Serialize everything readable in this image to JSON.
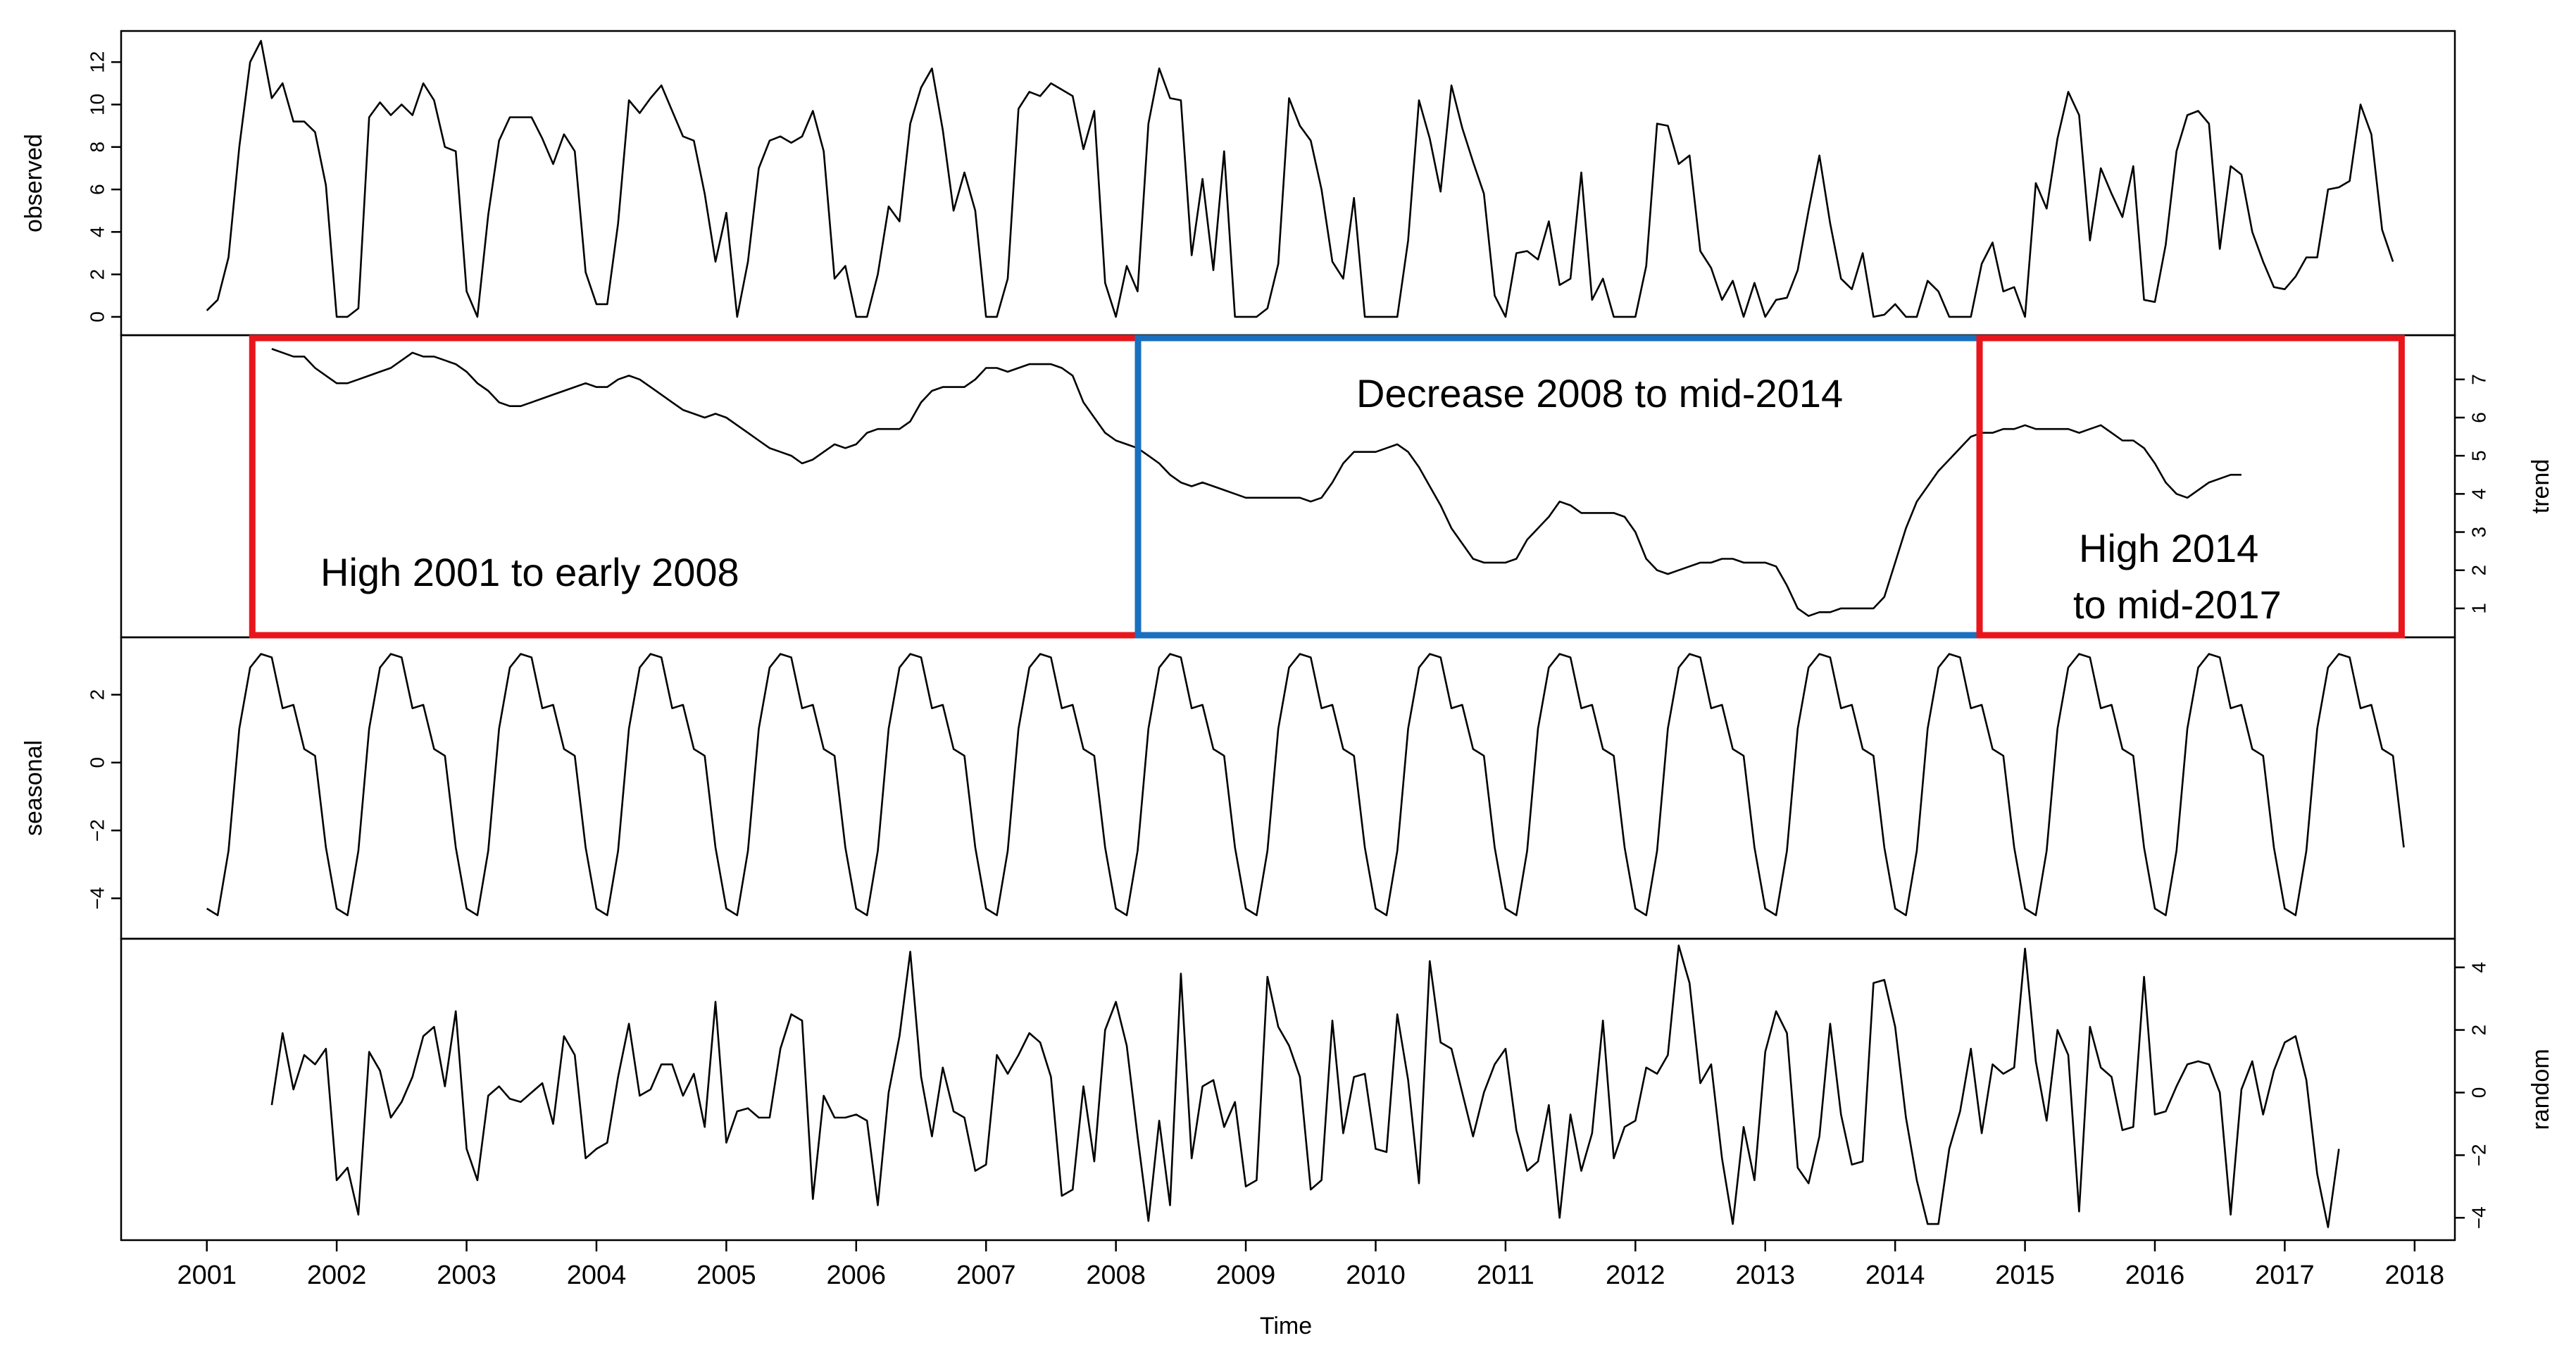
{
  "chart_data": {
    "type": "line",
    "title": "",
    "xlabel": "Time",
    "x_start": 2001,
    "frequency": 12,
    "x_ticks": [
      "2001",
      "2002",
      "2003",
      "2004",
      "2005",
      "2006",
      "2007",
      "2008",
      "2009",
      "2010",
      "2011",
      "2012",
      "2013",
      "2014",
      "2015",
      "2016",
      "2017",
      "2018"
    ],
    "x_range": [
      2001,
      2018
    ],
    "panels": [
      {
        "name": "observed",
        "ylabel": "observed",
        "ylim": [
          -0.4,
          13
        ],
        "yticks": [
          "0",
          "2",
          "4",
          "6",
          "8",
          "10",
          "12"
        ],
        "values": [
          0.3,
          0.8,
          2.8,
          8,
          12,
          13,
          10.3,
          11,
          9.2,
          9.2,
          8.7,
          6.2,
          0,
          0,
          0.4,
          9.4,
          10.1,
          9.5,
          10,
          9.5,
          11,
          10.2,
          8,
          7.8,
          1.2,
          0,
          4.8,
          8.3,
          9.4,
          9.4,
          9.4,
          8.4,
          7.2,
          8.6,
          7.8,
          2.1,
          0.6,
          0.6,
          4.4,
          10.2,
          9.6,
          10.3,
          10.9,
          9.7,
          8.5,
          8.3,
          5.8,
          2.6,
          4.9,
          0,
          2.6,
          7,
          8.3,
          8.5,
          8.2,
          8.5,
          9.7,
          7.8,
          1.8,
          2.4,
          0,
          0,
          2,
          5.2,
          4.5,
          9.1,
          10.8,
          11.7,
          8.8,
          5,
          6.8,
          5,
          0,
          0,
          1.8,
          9.8,
          10.6,
          10.4,
          11,
          10.7,
          10.4,
          7.9,
          9.7,
          1.6,
          0,
          2.4,
          1.2,
          9.1,
          11.7,
          10.3,
          10.2,
          2.9,
          6.5,
          2.2,
          7.8,
          0,
          0,
          0,
          0.4,
          2.5,
          10.3,
          9,
          8.3,
          6,
          2.6,
          1.8,
          5.6,
          0,
          0,
          0,
          0,
          3.6,
          10.2,
          8.4,
          5.9,
          10.9,
          8.9,
          7.3,
          5.8,
          1,
          0,
          3,
          3.1,
          2.7,
          4.5,
          1.5,
          1.8,
          6.8,
          0.8,
          1.8,
          0,
          0,
          0,
          2.4,
          9.1,
          9,
          7.2,
          7.6,
          3.1,
          2.3,
          0.8,
          1.7,
          0,
          1.6,
          0,
          0.8,
          0.9,
          2.2,
          5,
          7.6,
          4.4,
          1.8,
          1.3,
          3,
          0,
          0.1,
          0.6,
          0,
          0,
          1.7,
          1.2,
          0,
          0,
          0,
          2.5,
          3.5,
          1.2,
          1.4,
          0,
          6.3,
          5.1,
          8.4,
          10.6,
          9.5,
          3.6,
          7,
          5.8,
          4.7,
          7.1,
          0.8,
          0.7,
          3.4,
          7.8,
          9.5,
          9.7,
          9.1,
          3.2,
          7.1,
          6.7,
          4,
          2.6,
          1.4,
          1.3,
          1.9,
          2.8,
          2.8,
          6,
          6.1,
          6.4,
          10,
          8.6,
          4.1,
          2.6
        ]
      },
      {
        "name": "trend",
        "ylabel": "trend",
        "ylim": [
          0.5,
          7.9
        ],
        "yticks": [
          "1",
          "2",
          "3",
          "4",
          "5",
          "6",
          "7"
        ],
        "values": [
          7.8,
          7.7,
          7.6,
          7.6,
          7.3,
          7.1,
          6.9,
          6.9,
          7,
          7.1,
          7.2,
          7.3,
          7.5,
          7.7,
          7.6,
          7.6,
          7.5,
          7.4,
          7.2,
          6.9,
          6.7,
          6.4,
          6.3,
          6.3,
          6.4,
          6.5,
          6.6,
          6.7,
          6.8,
          6.9,
          6.8,
          6.8,
          7,
          7.1,
          7,
          6.8,
          6.6,
          6.4,
          6.2,
          6.1,
          6,
          6.1,
          6,
          5.8,
          5.6,
          5.4,
          5.2,
          5.1,
          5,
          4.8,
          4.9,
          5.1,
          5.3,
          5.2,
          5.3,
          5.6,
          5.7,
          5.7,
          5.7,
          5.9,
          6.4,
          6.7,
          6.8,
          6.8,
          6.8,
          7,
          7.3,
          7.3,
          7.2,
          7.3,
          7.4,
          7.4,
          7.4,
          7.3,
          7.1,
          6.4,
          6,
          5.6,
          5.4,
          5.3,
          5.2,
          5,
          4.8,
          4.5,
          4.3,
          4.2,
          4.3,
          4.2,
          4.1,
          4,
          3.9,
          3.9,
          3.9,
          3.9,
          3.9,
          3.9,
          3.8,
          3.9,
          4.3,
          4.8,
          5.1,
          5.1,
          5.1,
          5.2,
          5.3,
          5.1,
          4.7,
          4.2,
          3.7,
          3.1,
          2.7,
          2.3,
          2.2,
          2.2,
          2.2,
          2.3,
          2.8,
          3.1,
          3.4,
          3.8,
          3.7,
          3.5,
          3.5,
          3.5,
          3.5,
          3.4,
          3,
          2.3,
          2,
          1.9,
          2,
          2.1,
          2.2,
          2.2,
          2.3,
          2.3,
          2.2,
          2.2,
          2.2,
          2.1,
          1.6,
          1,
          0.8,
          0.9,
          0.9,
          1,
          1,
          1,
          1,
          1.3,
          2.2,
          3.1,
          3.8,
          4.2,
          4.6,
          4.9,
          5.2,
          5.5,
          5.6,
          5.6,
          5.7,
          5.7,
          5.8,
          5.7,
          5.7,
          5.7,
          5.7,
          5.6,
          5.7,
          5.8,
          5.6,
          5.4,
          5.4,
          5.2,
          4.8,
          4.3,
          4,
          3.9,
          4.1,
          4.3,
          4.4,
          4.5,
          4.5
        ]
      },
      {
        "name": "seasonal",
        "ylabel": "seasonal",
        "ylim": [
          -4.9,
          3.4
        ],
        "yticks": [
          "-4",
          "-2",
          "0",
          "2"
        ],
        "values": [
          -4.3,
          -4.5,
          -2.6,
          1,
          2.8,
          3.2,
          3.1,
          1.6,
          1.7,
          0.4,
          0.2,
          -2.5
        ]
      },
      {
        "name": "random",
        "ylabel": "random",
        "ylim": [
          -4.4,
          4.6
        ],
        "yticks": [
          "-4",
          "-2",
          "0",
          "2",
          "4"
        ],
        "values": [
          -0.4,
          1.9,
          0.1,
          1.2,
          0.9,
          1.4,
          -2.8,
          -2.4,
          -3.9,
          1.3,
          0.7,
          -0.8,
          -0.3,
          0.5,
          1.8,
          2.1,
          0.2,
          2.6,
          -1.8,
          -2.8,
          -0.1,
          0.2,
          -0.2,
          -0.3,
          0,
          0.3,
          -1,
          1.8,
          1.2,
          -2.1,
          -1.8,
          -1.6,
          0.5,
          2.2,
          -0.1,
          0.1,
          0.9,
          0.9,
          -0.1,
          0.6,
          -1.1,
          2.9,
          -1.6,
          -0.6,
          -0.5,
          -0.8,
          -0.8,
          1.4,
          2.5,
          2.3,
          -3.4,
          -0.1,
          -0.8,
          -0.8,
          -0.7,
          -0.9,
          -3.6,
          0,
          1.8,
          4.5,
          0.5,
          -1.4,
          0.8,
          -0.6,
          -0.8,
          -2.5,
          -2.3,
          1.2,
          0.6,
          1.2,
          1.9,
          1.6,
          0.5,
          -3.3,
          -3.1,
          0.2,
          -2.2,
          2,
          2.9,
          1.5,
          -1.4,
          -4.1,
          -0.9,
          -3.6,
          3.8,
          -2.1,
          0.2,
          0.4,
          -1.1,
          -0.3,
          -3,
          -2.8,
          3.7,
          2.1,
          1.5,
          0.5,
          -3.1,
          -2.8,
          2.3,
          -1.3,
          0.5,
          0.6,
          -1.8,
          -1.9,
          2.5,
          0.4,
          -2.9,
          4.2,
          1.6,
          1.4,
          0,
          -1.4,
          0,
          0.9,
          1.4,
          -1.2,
          -2.5,
          -2.2,
          -0.4,
          -4,
          -0.7,
          -2.5,
          -1.3,
          2.3,
          -2.1,
          -1.1,
          -0.9,
          0.8,
          0.6,
          1.2,
          4.7,
          3.5,
          0.3,
          0.9,
          -2.1,
          -4.2,
          -1.1,
          -2.8,
          1.3,
          2.6,
          1.9,
          -2.4,
          -2.9,
          -1.4,
          2.2,
          -0.7,
          -2.3,
          -2.2,
          3.5,
          3.6,
          2.1,
          -0.8,
          -2.8,
          -4.2,
          -4.2,
          -1.8,
          -0.6,
          1.4,
          -1.3,
          0.9,
          0.6,
          0.8,
          4.6,
          1,
          -0.9,
          2,
          1.2,
          -3.8,
          2.1,
          0.8,
          0.5,
          -1.2,
          -1.1,
          3.7,
          -0.7,
          -0.6,
          0.2,
          0.9,
          1,
          0.9,
          0,
          -3.9,
          0.1,
          1,
          -0.7,
          0.7,
          1.6,
          1.8,
          0.4,
          -2.6,
          -4.3,
          -1.8
        ]
      }
    ],
    "annotations": [
      {
        "label": "High 2001 to early 2008",
        "x_start": 2001.35,
        "x_end": 2008.17,
        "color": "#e8161b"
      },
      {
        "label": "Decrease 2008 to mid-2014",
        "x_start": 2008.17,
        "x_end": 2014.65,
        "color": "#1a6fbf"
      },
      {
        "label_line1": "High 2014",
        "label_line2": "to mid-2017",
        "x_start": 2014.65,
        "x_end": 2017.9,
        "color": "#e8161b"
      }
    ]
  }
}
